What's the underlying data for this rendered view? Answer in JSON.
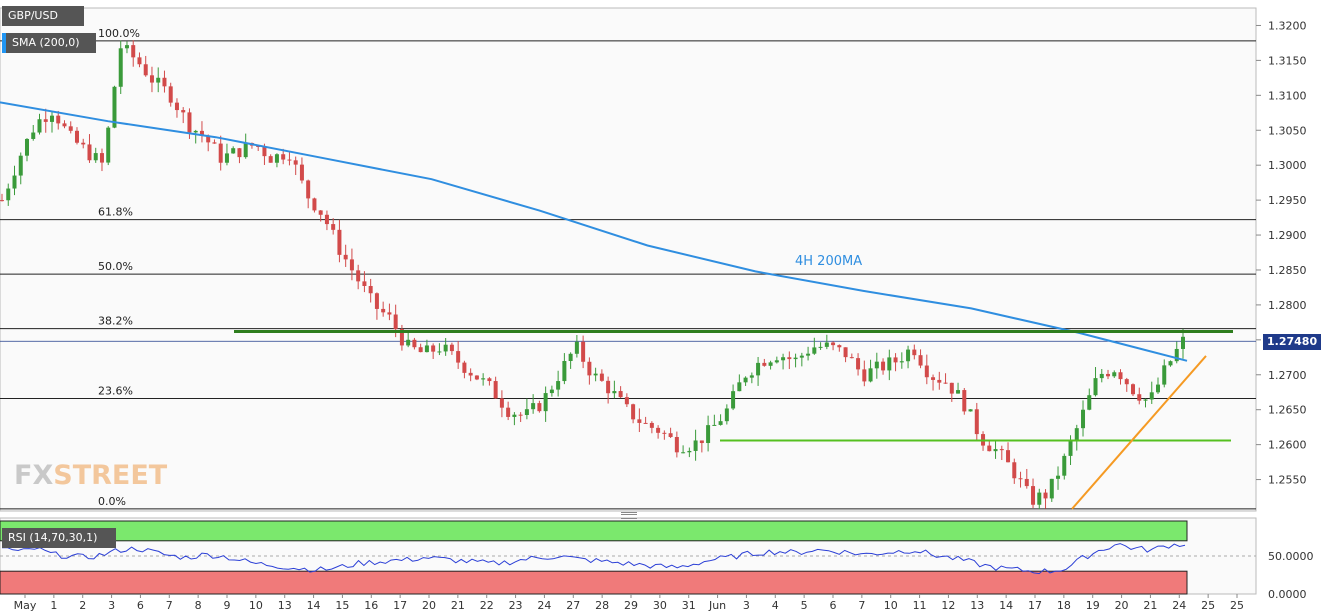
{
  "symbol": "GBP/USD",
  "indicator_label": "SMA (200,0)",
  "rsi_label": "RSI (14,70,30,1)",
  "current_price": "1.27480",
  "annotation": "4H 200MA",
  "watermark": {
    "a": "FX",
    "b": "STREET"
  },
  "colors": {
    "up": "#3a9a3a",
    "down": "#d24a4a",
    "sma": "#2f8ee0",
    "resistance": "#2e7d1e",
    "support": "#55c020",
    "trend": "#f59a23",
    "rsi_line": "#2b3fd6",
    "rsi_ob": "#7be86d",
    "rsi_os": "#f07a7a"
  },
  "chart_data": {
    "type": "candlestick",
    "ylim": [
      1.2505,
      1.3225
    ],
    "y_ticks": [
      "1.3200",
      "1.3150",
      "1.3100",
      "1.3050",
      "1.3000",
      "1.2950",
      "1.2900",
      "1.2850",
      "1.2800",
      "1.2750",
      "1.2700",
      "1.2650",
      "1.2600",
      "1.2550"
    ],
    "x_ticks": [
      "May",
      "1",
      "2",
      "3",
      "6",
      "7",
      "8",
      "9",
      "10",
      "13",
      "14",
      "15",
      "16",
      "17",
      "20",
      "21",
      "22",
      "23",
      "24",
      "27",
      "28",
      "29",
      "30",
      "31",
      "Jun",
      "3",
      "4",
      "5",
      "6",
      "7",
      "10",
      "11",
      "12",
      "13",
      "14",
      "17",
      "18",
      "19",
      "20",
      "21",
      "24",
      "25",
      "25"
    ],
    "fib_levels": [
      {
        "label": "100.0%",
        "value": 1.3178
      },
      {
        "label": "61.8%",
        "value": 1.2922
      },
      {
        "label": "50.0%",
        "value": 1.2844
      },
      {
        "label": "38.2%",
        "value": 1.2766
      },
      {
        "label": "23.6%",
        "value": 1.2666
      },
      {
        "label": "0.0%",
        "value": 1.2508
      }
    ],
    "resistance": 1.2762,
    "support": 1.2606,
    "trendline": [
      [
        1.2508,
        1.2727
      ]
    ],
    "sma_200": [
      1.309,
      1.3063,
      1.304,
      1.301,
      1.298,
      1.2935,
      1.2885,
      1.2848,
      1.282,
      1.2795,
      1.276,
      1.272
    ],
    "rsi_ticks": [
      "50.0000",
      "0.0000"
    ],
    "rsi_levels": [
      70,
      30
    ],
    "price_path": [
      1.295,
      1.301,
      1.306,
      1.308,
      1.304,
      1.302,
      1.3,
      1.317,
      1.315,
      1.312,
      1.31,
      1.306,
      1.304,
      1.301,
      1.302,
      1.303,
      1.301,
      1.302,
      1.296,
      1.293,
      1.288,
      1.284,
      1.28,
      1.278,
      1.274,
      1.273,
      1.274,
      1.272,
      1.27,
      1.268,
      1.265,
      1.264,
      1.266,
      1.27,
      1.274,
      1.27,
      1.268,
      1.265,
      1.263,
      1.262,
      1.26,
      1.26,
      1.262,
      1.265,
      1.27,
      1.272,
      1.273,
      1.272,
      1.274,
      1.274,
      1.273,
      1.27,
      1.271,
      1.272,
      1.274,
      1.27,
      1.269,
      1.266,
      1.261,
      1.259,
      1.256,
      1.252,
      1.253,
      1.258,
      1.264,
      1.27,
      1.271,
      1.268,
      1.266,
      1.271,
      1.2748
    ],
    "rsi_path": [
      62,
      55,
      60,
      52,
      50,
      48,
      52,
      58,
      60,
      55,
      50,
      48,
      52,
      50,
      45,
      40,
      38,
      35,
      33,
      32,
      35,
      40,
      42,
      44,
      45,
      48,
      46,
      44,
      42,
      40,
      42,
      46,
      48,
      50,
      46,
      44,
      42,
      40,
      38,
      36,
      35,
      40,
      45,
      48,
      52,
      55,
      56,
      54,
      58,
      57,
      55,
      52,
      54,
      56,
      58,
      52,
      48,
      44,
      38,
      34,
      32,
      30,
      30,
      34,
      48,
      58,
      66,
      60,
      58,
      64,
      66
    ]
  }
}
